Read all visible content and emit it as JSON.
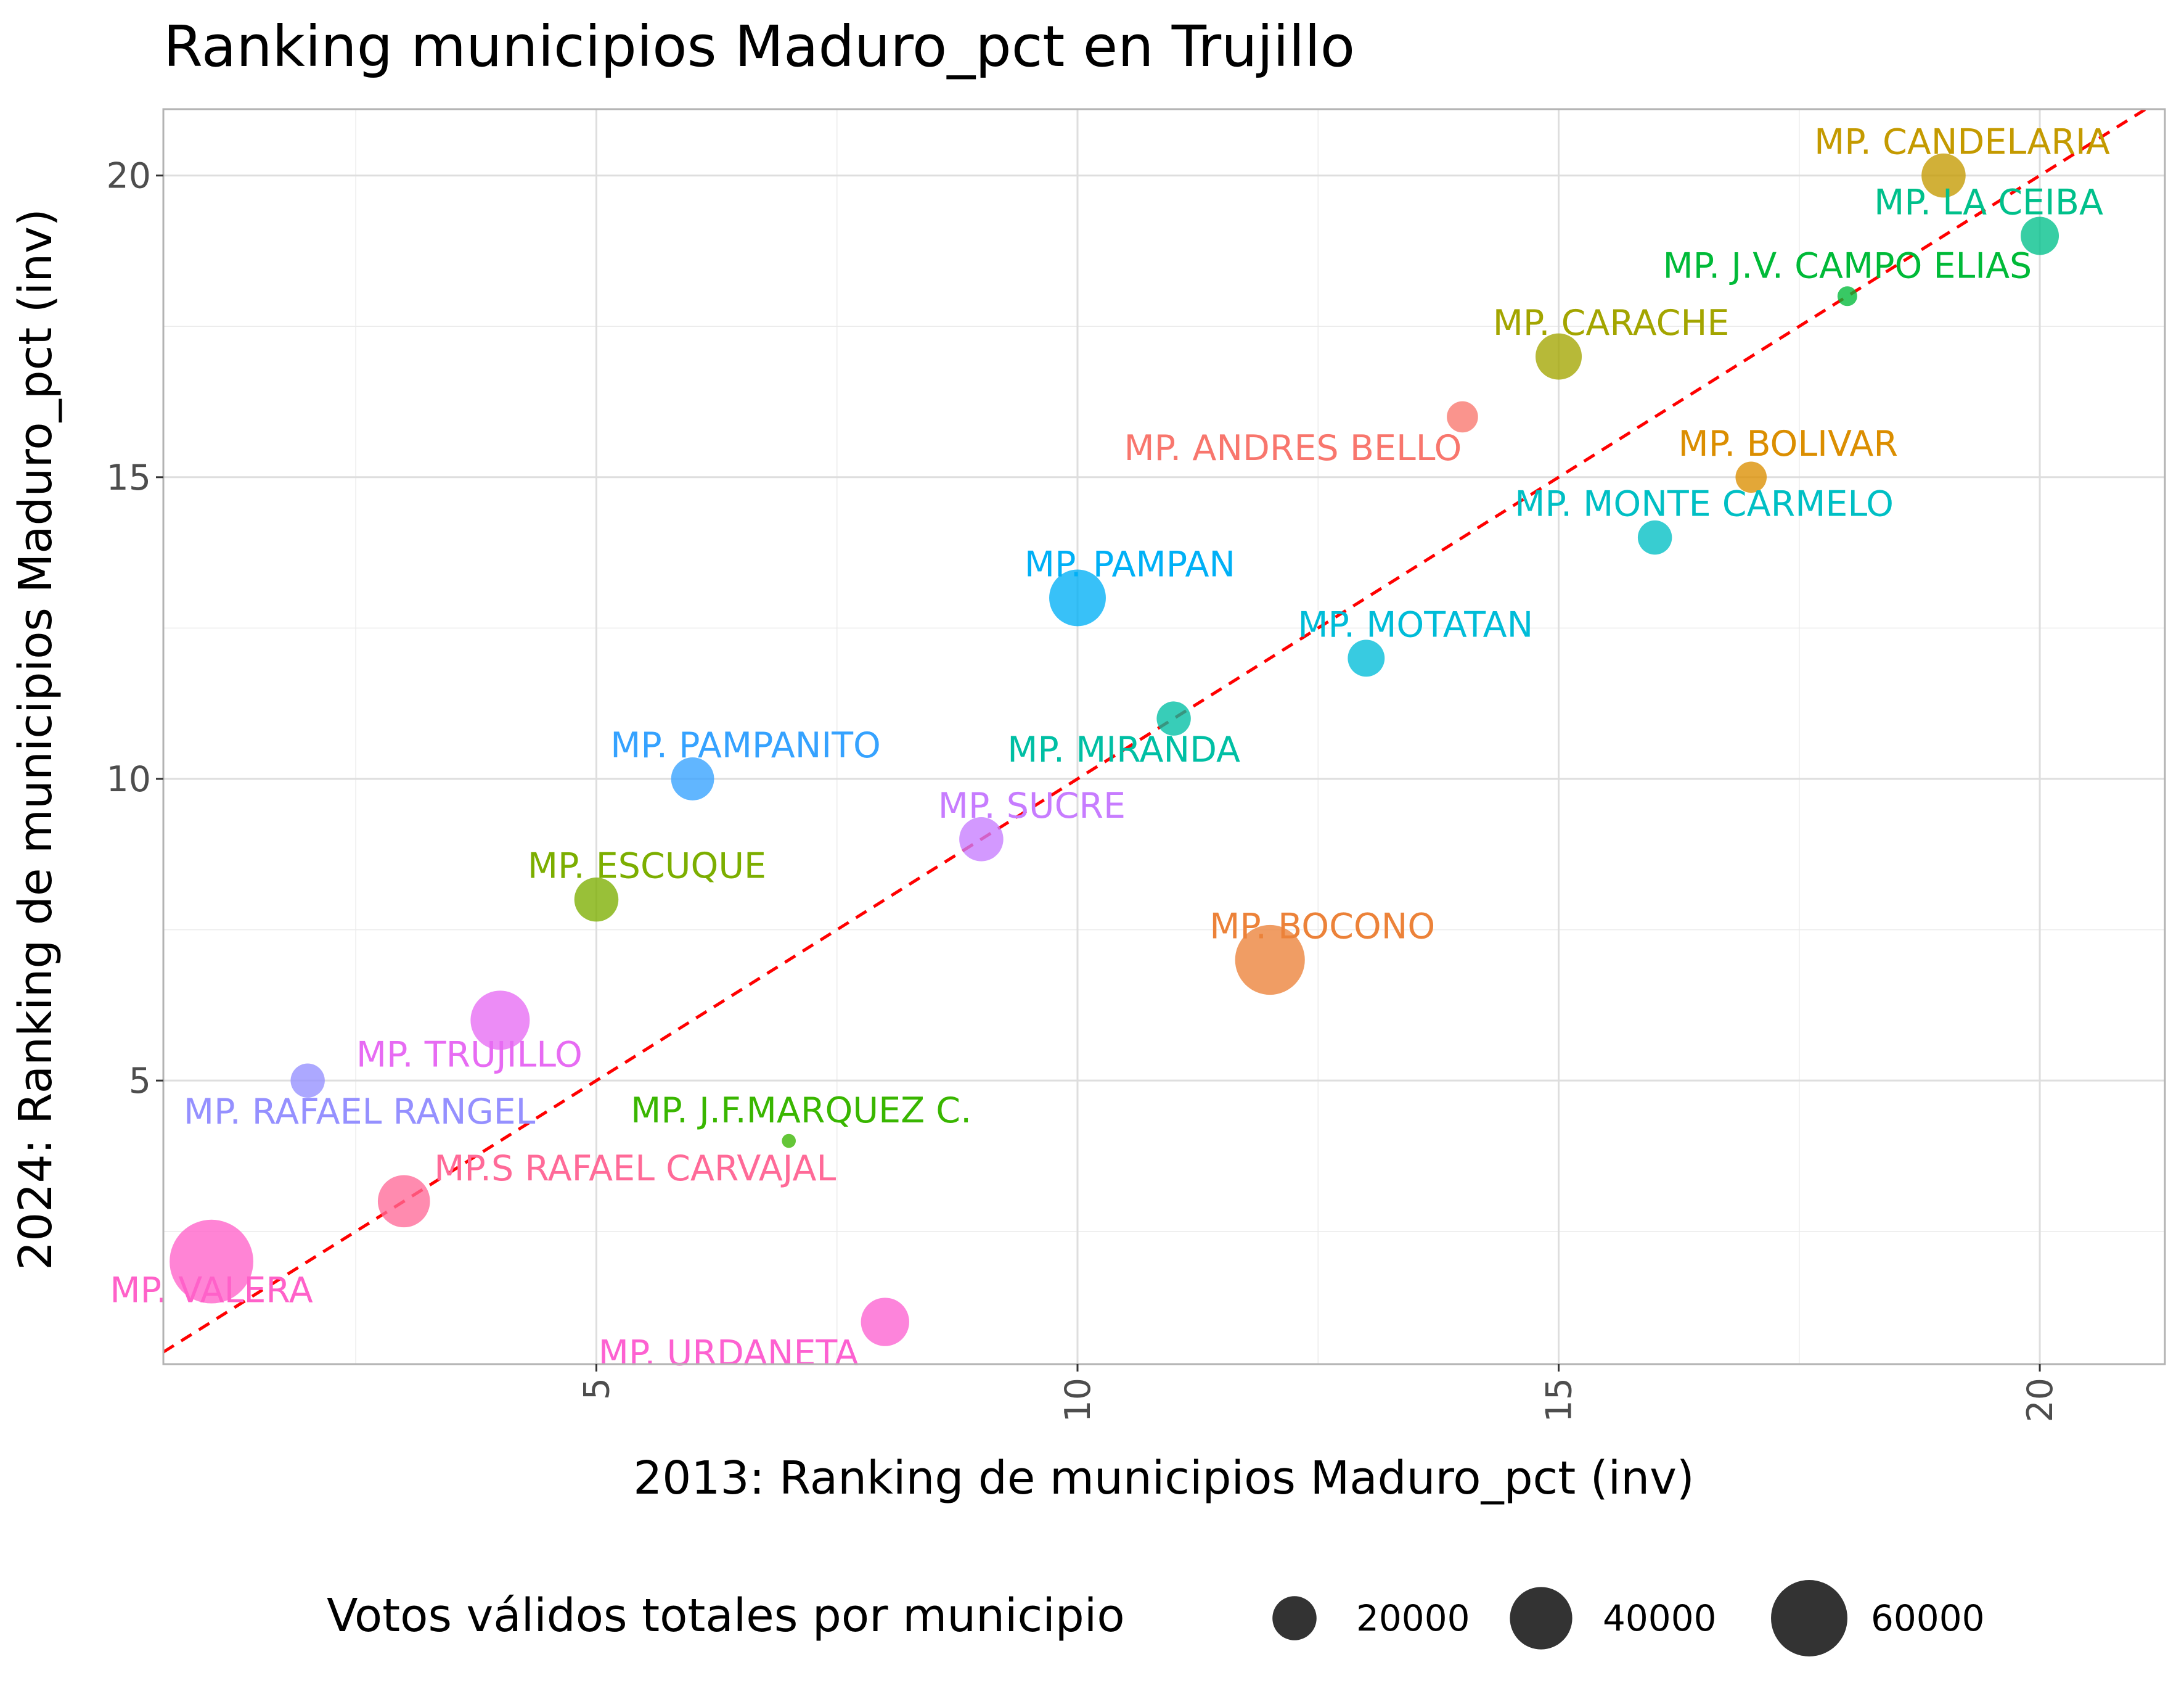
{
  "chart_data": {
    "type": "scatter",
    "title": "Ranking municipios Maduro_pct en Trujillo",
    "xlabel": "2013: Ranking de municipios Maduro_pct (inv)",
    "ylabel": "2024: Ranking de municipios Maduro_pct (inv)",
    "xlim": [
      0.5,
      21.3
    ],
    "ylim": [
      0.3,
      21.1
    ],
    "xticks": [
      5,
      10,
      15,
      20
    ],
    "yticks": [
      5,
      10,
      15,
      20
    ],
    "grid": true,
    "reference_line": {
      "style": "dashed",
      "color": "#ff0000",
      "slope": 1,
      "intercept": 0
    },
    "size_legend": {
      "title": "Votos válidos totales por municipio",
      "position": "bottom",
      "entries": [
        {
          "label": "20000",
          "value": 20000
        },
        {
          "label": "40000",
          "value": 40000
        },
        {
          "label": "60000",
          "value": 60000
        }
      ]
    },
    "points": [
      {
        "name": "MP. VALERA",
        "x": 1,
        "y": 2,
        "votes": 72000,
        "color": "#FF61C9"
      },
      {
        "name": "MP. RAFAEL RANGEL",
        "x": 2,
        "y": 5,
        "votes": 12000,
        "color": "#9590FF"
      },
      {
        "name": "MP.S RAFAEL CARVAJAL",
        "x": 3,
        "y": 3,
        "votes": 28000,
        "color": "#FF6A98"
      },
      {
        "name": "MP. TRUJILLO",
        "x": 4,
        "y": 6,
        "votes": 36000,
        "color": "#E76BF3"
      },
      {
        "name": "MP. ESCUQUE",
        "x": 5,
        "y": 8,
        "votes": 20000,
        "color": "#7CAE00"
      },
      {
        "name": "MP. PAMPANITO",
        "x": 6,
        "y": 10,
        "votes": 19000,
        "color": "#35A2FF"
      },
      {
        "name": "MP. J.F.MARQUEZ C.",
        "x": 7,
        "y": 4,
        "votes": 2000,
        "color": "#39B600"
      },
      {
        "name": "MP. URDANETA",
        "x": 8,
        "y": 1,
        "votes": 24000,
        "color": "#FD61D1"
      },
      {
        "name": "MP. SUCRE",
        "x": 9,
        "y": 9,
        "votes": 20000,
        "color": "#C77CFF"
      },
      {
        "name": "MP. PAMPAN",
        "x": 10,
        "y": 13,
        "votes": 33000,
        "color": "#00B0F6"
      },
      {
        "name": "MP. MIRANDA",
        "x": 11,
        "y": 11,
        "votes": 12000,
        "color": "#00BFA4"
      },
      {
        "name": "MP. BOCONO",
        "x": 12,
        "y": 7,
        "votes": 50000,
        "color": "#EC8239"
      },
      {
        "name": "MP. MOTATAN",
        "x": 13,
        "y": 12,
        "votes": 14000,
        "color": "#00BCD8"
      },
      {
        "name": "MP. ANDRES BELLO",
        "x": 14,
        "y": 16,
        "votes": 10000,
        "color": "#F8766D"
      },
      {
        "name": "MP. CARACHE",
        "x": 15,
        "y": 17,
        "votes": 22000,
        "color": "#A3A500"
      },
      {
        "name": "MP. MONTE CARMELO",
        "x": 16,
        "y": 14,
        "votes": 12000,
        "color": "#00BFC4"
      },
      {
        "name": "MP. BOLIVAR",
        "x": 17,
        "y": 15,
        "votes": 10000,
        "color": "#DB8E00"
      },
      {
        "name": "MP. J.V. CAMPO ELIAS",
        "x": 18,
        "y": 18,
        "votes": 4000,
        "color": "#00BA38"
      },
      {
        "name": "MP. CANDELARIA",
        "x": 19,
        "y": 20,
        "votes": 20000,
        "color": "#C49A00"
      },
      {
        "name": "MP. LA CEIBA",
        "x": 20,
        "y": 19,
        "votes": 15000,
        "color": "#00C08B"
      }
    ]
  }
}
